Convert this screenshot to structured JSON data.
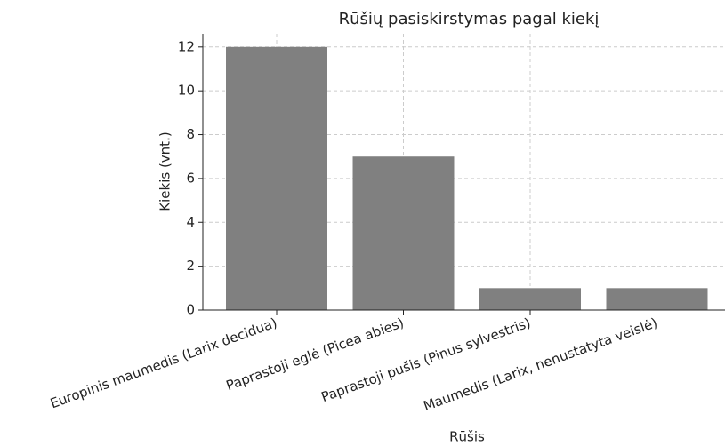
{
  "chart_data": {
    "type": "bar",
    "title": "Rūšių pasiskirstymas pagal kiekį",
    "x_label": "Rūšis",
    "y_label": "Kiekis (vnt.)",
    "categories": [
      "Europinis maumedis (Larix decidua)",
      "Paprastoji eglė (Picea abies)",
      "Paprastoji pušis (Pinus sylvestris)",
      "Maumedis (Larix, nenustatyta veislė)"
    ],
    "values": [
      12,
      7,
      1,
      1
    ],
    "color": "#808080",
    "ylim": [
      0,
      12.6
    ],
    "yticks": [
      0,
      2,
      4,
      6,
      8,
      10,
      12
    ],
    "grid": true
  }
}
